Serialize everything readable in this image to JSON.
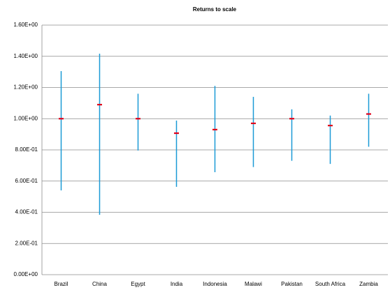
{
  "chart_data": {
    "type": "errorbar",
    "title": "Returns to scale",
    "categories": [
      "Brazil",
      "China",
      "Egypt",
      "India",
      "Indonesia",
      "Malawi",
      "Pakistan",
      "South Africa",
      "Zambia"
    ],
    "values": [
      1.0,
      1.09,
      1.0,
      0.907,
      0.93,
      0.97,
      1.0,
      0.956,
      1.03
    ],
    "low": [
      0.54,
      0.384,
      0.796,
      0.563,
      0.657,
      0.69,
      0.73,
      0.71,
      0.82
    ],
    "high": [
      1.305,
      1.417,
      1.16,
      0.988,
      1.21,
      1.14,
      1.06,
      1.02,
      1.16
    ],
    "color": "#e0001b",
    "range_color": "#1b9ad6",
    "ylim": [
      0,
      1.6
    ],
    "yticks": [
      {
        "value": 0,
        "label": "0.00E+00"
      },
      {
        "value": 0.2,
        "label": "2.00E-01"
      },
      {
        "value": 0.4,
        "label": "4.00E-01"
      },
      {
        "value": 0.6,
        "label": "6.00E-01"
      },
      {
        "value": 0.8,
        "label": "8.00E-01"
      },
      {
        "value": 1.0,
        "label": "1.00E+00"
      },
      {
        "value": 1.2,
        "label": "1.20E+00"
      },
      {
        "value": 1.4,
        "label": "1.40E+00"
      },
      {
        "value": 1.6,
        "label": "1.60E+00"
      }
    ],
    "grid": true
  }
}
